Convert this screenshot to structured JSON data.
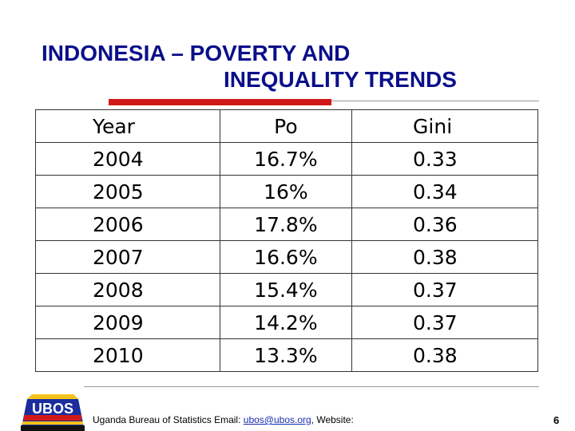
{
  "slide": {
    "title_line1": "INDONESIA – POVERTY AND",
    "title_line2": "INEQUALITY TRENDS"
  },
  "table": {
    "headers": [
      "Year",
      "Po",
      "Gini"
    ],
    "rows": [
      [
        "2004",
        "16.7%",
        "0.33"
      ],
      [
        "2005",
        "16%",
        "0.34"
      ],
      [
        "2006",
        "17.8%",
        "0.36"
      ],
      [
        "2007",
        "16.6%",
        "0.38"
      ],
      [
        "2008",
        "15.4%",
        "0.37"
      ],
      [
        "2009",
        "14.2%",
        "0.37"
      ],
      [
        "2010",
        "13.3%",
        "0.38"
      ]
    ]
  },
  "footer": {
    "org_text": "Uganda Bureau of Statistics Email: ",
    "email": "ubos@ubos.org",
    "website_text": ", Website:",
    "page_number": "6",
    "logo_text": "UBOS"
  },
  "colors": {
    "title": "#0a0f8a",
    "accent_bar": "#d01818",
    "link": "#1a2fb0"
  }
}
